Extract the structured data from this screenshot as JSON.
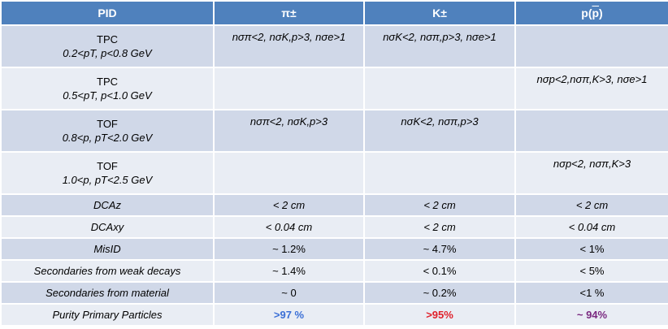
{
  "header": {
    "pid": "PID",
    "pi": "π±",
    "k": "K±",
    "p": {
      "pre": "p(",
      "bar": "p",
      "post": ")"
    }
  },
  "rows": [
    {
      "detector": "TPC",
      "range": "0.2<pT, p<0.8 GeV",
      "pi": "nσπ<2, nσK,p>3, nσe>1",
      "k": "nσK<2, nσπ,p>3, nσe>1",
      "p": ""
    },
    {
      "detector": "TPC",
      "range": "0.5<pT, p<1.0 GeV",
      "pi": "",
      "k": "",
      "p": "nσp<2,nσπ,K>3, nσe>1"
    },
    {
      "detector": "TOF",
      "range": "0.8<p, pT<2.0 GeV",
      "pi": "nσπ<2, nσK,p>3",
      "k": "nσK<2, nσπ,p>3",
      "p": ""
    },
    {
      "detector": "TOF",
      "range": "1.0<p, pT<2.5 GeV",
      "pi": "",
      "k": "",
      "p": "nσp<2, nσπ,K>3"
    }
  ],
  "dcaz": {
    "label": "DCAz",
    "pi": "< 2 cm",
    "k": "< 2 cm",
    "p": "< 2 cm"
  },
  "dcaxy": {
    "label": "DCAxy",
    "pi": "< 0.04 cm",
    "k": "< 2 cm",
    "p": "< 0.04 cm"
  },
  "misid": {
    "label": "MisID",
    "pi": "~ 1.2%",
    "k": "~ 4.7%",
    "p": "< 1%"
  },
  "weak": {
    "label": "Secondaries from weak decays",
    "pi": "~ 1.4%",
    "k": "< 0.1%",
    "p": "< 5%"
  },
  "material": {
    "label": "Secondaries from material",
    "pi": "~ 0",
    "k": "~ 0.2%",
    "p": "<1 %"
  },
  "purity": {
    "label": "Purity Primary Particles",
    "pi": ">97 %",
    "k": ">95%",
    "p": "~ 94%"
  },
  "colors": {
    "header_bg": "#4f81bd",
    "row_dark": "#d0d8e8",
    "row_light": "#e9edf4",
    "purity_pi": "#3b6fd6",
    "purity_k": "#e0202a",
    "purity_p": "#7a2a80"
  }
}
